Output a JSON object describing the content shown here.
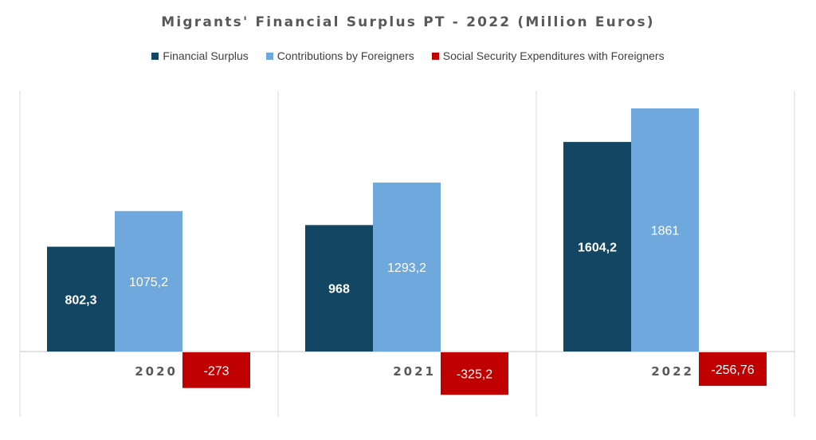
{
  "chart_data": {
    "type": "bar",
    "title": "Migrants' Financial Surplus PT - 2022 (Million Euros)",
    "categories": [
      "2020",
      "2021",
      "2022"
    ],
    "series": [
      {
        "name": "Financial Surplus",
        "color": "#124663",
        "values": [
          802.3,
          968,
          1604.2
        ],
        "labels": [
          "802,3",
          "968",
          "1604,2"
        ]
      },
      {
        "name": "Contributions by Foreigners",
        "color": "#6fa8dc",
        "values": [
          1075.2,
          1293.2,
          1861
        ],
        "labels": [
          "1075,2",
          "1293,2",
          "1861"
        ]
      },
      {
        "name": "Social Security Expenditures with Foreigners",
        "color": "#c00000",
        "values": [
          -273,
          -325.2,
          -256.76
        ],
        "labels": [
          "-273",
          "-325,2",
          "-256,76"
        ]
      }
    ],
    "xlabel": "",
    "ylabel": "",
    "grid": "vertical category separators",
    "legend": "top"
  }
}
